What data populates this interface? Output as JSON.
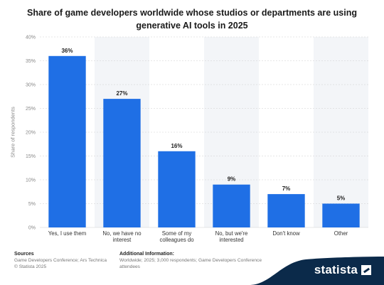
{
  "title": "Share of game developers worldwide whose studios or departments are using generative AI tools in 2025",
  "footer": {
    "sources_heading": "Sources",
    "sources_text": "Game Developers Conference; Ars Technica",
    "copyright": "© Statista 2025",
    "info_heading": "Additional Information:",
    "info_text": "Worldwide; 2025; 3,000 respondents; Game Developers Conference attendees"
  },
  "brand": {
    "name": "statista",
    "icon": "statista-logo-icon"
  },
  "colors": {
    "bar": "#1f6fe5",
    "grid": "#d0d0d0",
    "band": "#f3f5f8",
    "brand_dark": "#0b2a4a"
  },
  "chart_data": {
    "type": "bar",
    "title": "Share of game developers worldwide whose studios or departments are using generative AI tools in 2025",
    "xlabel": "",
    "ylabel": "Share of respondents",
    "ylim": [
      0,
      40
    ],
    "yticks": [
      0,
      5,
      10,
      15,
      20,
      25,
      30,
      35,
      40
    ],
    "ytick_labels": [
      "0%",
      "5%",
      "10%",
      "15%",
      "20%",
      "25%",
      "30%",
      "35%",
      "40%"
    ],
    "categories": [
      [
        "Yes, I use them"
      ],
      [
        "No, we have no",
        "interest"
      ],
      [
        "Some of my",
        "colleagues do"
      ],
      [
        "No, but we're",
        "interested"
      ],
      [
        "Don't know"
      ],
      [
        "Other"
      ]
    ],
    "values": [
      36,
      27,
      16,
      9,
      7,
      5
    ],
    "value_labels": [
      "36%",
      "27%",
      "16%",
      "9%",
      "7%",
      "5%"
    ],
    "grid": true,
    "legend": "none"
  }
}
